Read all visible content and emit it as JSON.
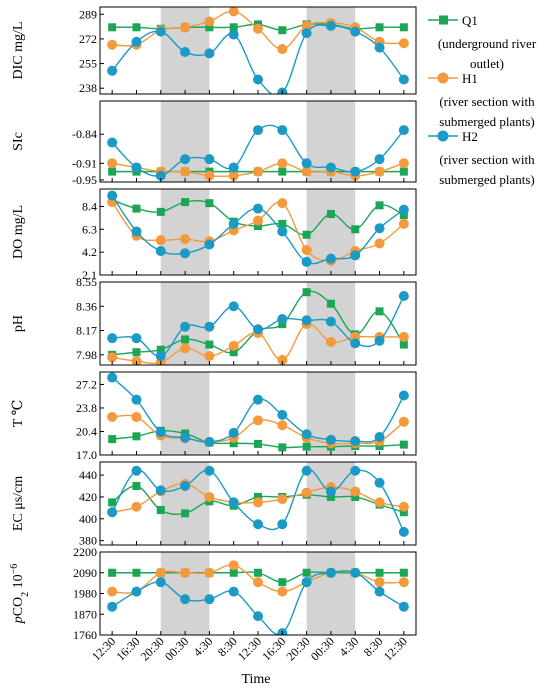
{
  "figure": {
    "xlabel": "Time",
    "x_ticks": [
      "12:30",
      "16:30",
      "20:30",
      "00:30",
      "4:30",
      "8:30",
      "12:30",
      "16:30",
      "20:30",
      "00:30",
      "4:30",
      "8:30",
      "12:30"
    ],
    "night_bands": [
      [
        20.5,
        28.5
      ],
      [
        44.5,
        52.5
      ]
    ],
    "legend": [
      {
        "name": "Q1",
        "desc_lines": [
          "(underground river",
          "outlet)"
        ],
        "color": "#1aa655",
        "marker": "square"
      },
      {
        "name": "H1",
        "desc_lines": [
          "(river section with",
          "submerged plants)"
        ],
        "color": "#f59a3c",
        "marker": "circle"
      },
      {
        "name": "H2",
        "desc_lines": [
          "(river section with",
          "submerged plants)"
        ],
        "color": "#1b9ac6",
        "marker": "circle"
      }
    ]
  },
  "chart_data": {
    "type": "line",
    "x": [
      12.5,
      16.5,
      20.5,
      24.5,
      28.5,
      32.5,
      36.5,
      40.5,
      44.5,
      48.5,
      52.5,
      56.5,
      60.5
    ],
    "panels": [
      {
        "ylabel": "DIC  mg/L",
        "ylim": [
          234,
          294
        ],
        "yticks": [
          "238",
          "255",
          "272",
          "289"
        ],
        "ytick_values": [
          238,
          255,
          272,
          289
        ],
        "series": [
          {
            "name": "Q1",
            "values": [
              280,
              280,
              279,
              280,
              280,
              280,
              282,
              278,
              282,
              282,
              279,
              280,
              280
            ]
          },
          {
            "name": "H1",
            "values": [
              268,
              268,
              278,
              280,
              284,
              291,
              279,
              265,
              281,
              283,
              280,
              270,
              269
            ]
          },
          {
            "name": "H2",
            "values": [
              250,
              270,
              277,
              263,
              262,
              275,
              244,
              235,
              276,
              281,
              277,
              266,
              244
            ]
          }
        ]
      },
      {
        "ylabel": "SIc",
        "ylim": [
          -0.955,
          -0.76
        ],
        "yticks": [
          "-0.95",
          "-0.91",
          "-0.84"
        ],
        "ytick_values": [
          -0.95,
          -0.91,
          -0.84
        ],
        "series": [
          {
            "name": "Q1",
            "values": [
              -0.93,
              -0.93,
              -0.93,
              -0.93,
              -0.93,
              -0.93,
              -0.93,
              -0.93,
              -0.93,
              -0.93,
              -0.93,
              -0.93,
              -0.93
            ]
          },
          {
            "name": "H1",
            "values": [
              -0.91,
              -0.92,
              -0.93,
              -0.93,
              -0.94,
              -0.94,
              -0.93,
              -0.91,
              -0.93,
              -0.93,
              -0.94,
              -0.93,
              -0.91
            ]
          },
          {
            "name": "H2",
            "values": [
              -0.86,
              -0.92,
              -0.94,
              -0.9,
              -0.9,
              -0.92,
              -0.83,
              -0.83,
              -0.91,
              -0.92,
              -0.93,
              -0.9,
              -0.83
            ]
          }
        ]
      },
      {
        "ylabel": "DO  mg/L",
        "ylim": [
          2.1,
          10.0
        ],
        "yticks": [
          "2.1",
          "4.2",
          "6.3",
          "8.4"
        ],
        "ytick_values": [
          2.1,
          4.2,
          6.3,
          8.4
        ],
        "series": [
          {
            "name": "Q1",
            "values": [
              9.0,
              8.2,
              7.9,
              8.8,
              8.7,
              7.0,
              6.6,
              6.8,
              5.8,
              7.7,
              6.3,
              8.5,
              7.6
            ]
          },
          {
            "name": "H1",
            "values": [
              8.8,
              5.7,
              5.3,
              5.4,
              5.2,
              6.2,
              7.1,
              8.7,
              4.4,
              3.4,
              4.3,
              5.0,
              6.8
            ]
          },
          {
            "name": "H2",
            "values": [
              9.4,
              6.1,
              4.3,
              4.1,
              4.9,
              6.8,
              8.2,
              6.1,
              3.3,
              3.6,
              3.9,
              6.4,
              8.1
            ]
          }
        ]
      },
      {
        "ylabel": "pH",
        "ylim": [
          7.9,
          8.55
        ],
        "yticks": [
          "7.98",
          "8.17",
          "8.36",
          "8.55"
        ],
        "ytick_values": [
          7.98,
          8.17,
          8.36,
          8.55
        ],
        "series": [
          {
            "name": "Q1",
            "values": [
              7.98,
              8.0,
              8.02,
              8.1,
              8.06,
              8.0,
              8.17,
              8.22,
              8.47,
              8.38,
              8.14,
              8.32,
              8.06
            ]
          },
          {
            "name": "H1",
            "values": [
              7.96,
              7.93,
              7.92,
              8.03,
              7.97,
              8.05,
              8.15,
              7.94,
              8.22,
              8.08,
              8.12,
              8.12,
              8.12
            ]
          },
          {
            "name": "H2",
            "values": [
              8.11,
              8.11,
              7.97,
              8.2,
              8.2,
              8.36,
              8.18,
              8.26,
              8.25,
              8.24,
              8.07,
              8.09,
              8.44
            ]
          }
        ]
      },
      {
        "ylabel": "T  ℃",
        "ylim": [
          17.0,
          29.0
        ],
        "yticks": [
          "17.0",
          "20.4",
          "23.8",
          "27.2"
        ],
        "ytick_values": [
          17.0,
          20.4,
          23.8,
          27.2
        ],
        "series": [
          {
            "name": "Q1",
            "values": [
              19.3,
              19.7,
              20.5,
              20.1,
              18.8,
              18.7,
              18.6,
              18.1,
              18.2,
              18.2,
              18.3,
              18.3,
              18.5
            ]
          },
          {
            "name": "H1",
            "values": [
              22.5,
              22.5,
              19.8,
              19.4,
              18.9,
              19.5,
              22.0,
              21.3,
              19.5,
              18.7,
              18.7,
              19.0,
              21.8
            ]
          },
          {
            "name": "H2",
            "values": [
              28.2,
              25.0,
              20.3,
              19.5,
              18.9,
              20.2,
              25.0,
              22.8,
              20.0,
              19.2,
              19.0,
              19.6,
              25.6
            ]
          }
        ]
      },
      {
        "ylabel": "EC  μs/cm",
        "ylim": [
          376,
          452
        ],
        "yticks": [
          "380",
          "400",
          "420",
          "440"
        ],
        "ytick_values": [
          380,
          400,
          420,
          440
        ],
        "series": [
          {
            "name": "Q1",
            "values": [
              415,
              430,
              408,
              405,
              416,
              412,
              420,
              420,
              422,
              420,
              420,
              413,
              406
            ]
          },
          {
            "name": "H1",
            "values": [
              406,
              411,
              425,
              432,
              420,
              415,
              415,
              418,
              424,
              429,
              425,
              415,
              411
            ]
          },
          {
            "name": "H2",
            "values": [
              406,
              444,
              426,
              430,
              444,
              415,
              395,
              395,
              444,
              425,
              444,
              433,
              388
            ]
          }
        ]
      },
      {
        "ylabel_parts": [
          "pCO",
          "2",
          "  10",
          "−6"
        ],
        "ylim": [
          1760,
          2200
        ],
        "yticks": [
          "1760",
          "1870",
          "1980",
          "2090",
          "2200"
        ],
        "ytick_values": [
          1760,
          1870,
          1980,
          2090,
          2200
        ],
        "series": [
          {
            "name": "Q1",
            "values": [
              2090,
              2090,
              2090,
              2090,
              2090,
              2090,
              2090,
              2040,
              2090,
              2090,
              2090,
              2090,
              2090
            ]
          },
          {
            "name": "H1",
            "values": [
              1990,
              1990,
              2090,
              2090,
              2090,
              2130,
              2040,
              1990,
              2040,
              2090,
              2090,
              2040,
              2040
            ]
          },
          {
            "name": "H2",
            "values": [
              1910,
              1990,
              2040,
              1950,
              1950,
              1990,
              1860,
              1770,
              2040,
              2090,
              2090,
              1990,
              1910
            ]
          }
        ]
      }
    ]
  }
}
